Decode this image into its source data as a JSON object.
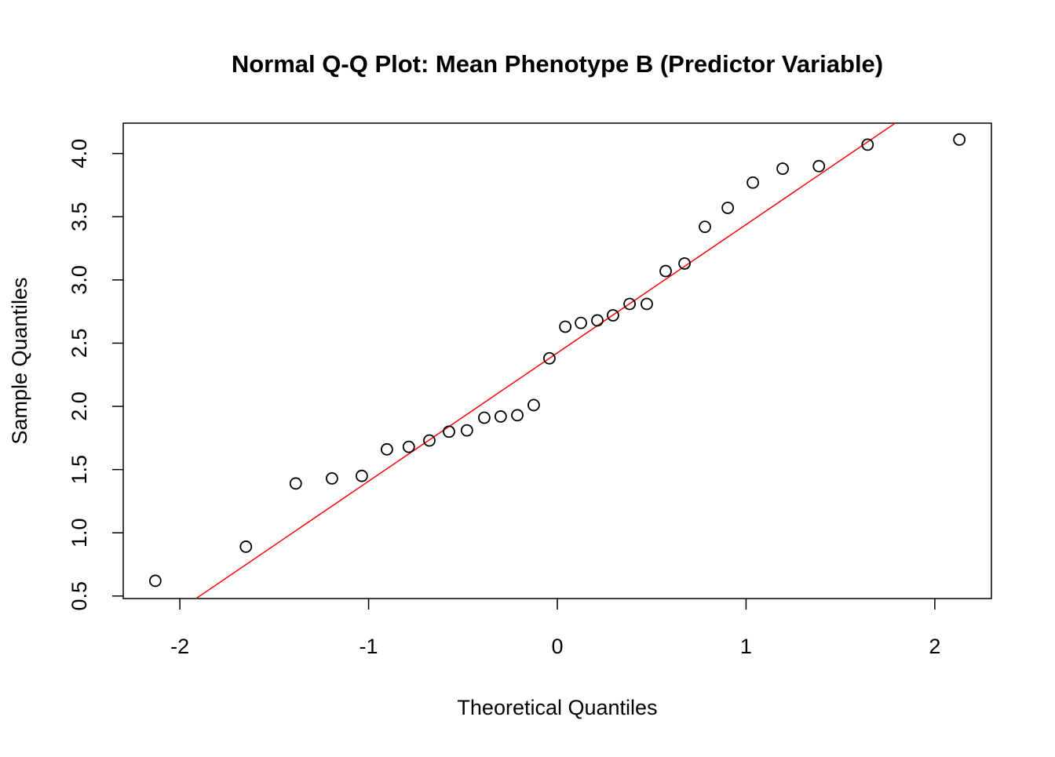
{
  "chart_data": {
    "type": "scatter",
    "title": "Normal Q-Q Plot: Mean Phenotype B (Predictor Variable)",
    "x_label": "Theoretical Quantiles",
    "y_label": "Sample Quantiles",
    "x": [
      -2.13,
      -1.65,
      -1.386,
      -1.194,
      -1.036,
      -0.903,
      -0.787,
      -0.678,
      -0.574,
      -0.479,
      -0.387,
      -0.3,
      -0.212,
      -0.125,
      -0.042,
      0.042,
      0.125,
      0.212,
      0.295,
      0.383,
      0.474,
      0.574,
      0.674,
      0.782,
      0.903,
      1.036,
      1.194,
      1.386,
      1.644,
      2.13
    ],
    "values": [
      0.62,
      0.89,
      1.39,
      1.43,
      1.45,
      1.66,
      1.68,
      1.73,
      1.8,
      1.81,
      1.91,
      1.92,
      1.93,
      2.01,
      2.38,
      2.63,
      2.66,
      2.68,
      2.72,
      2.81,
      2.81,
      3.07,
      3.13,
      3.42,
      3.57,
      3.77,
      3.88,
      3.9,
      4.07,
      4.11
    ],
    "color": "#000000",
    "reference_line": {
      "intercept": 2.423,
      "slope": 1.015,
      "color": "#ff0000"
    },
    "xlim": [
      -2.3,
      2.3
    ],
    "ylim": [
      0.48,
      4.24
    ],
    "xticks": [
      -2,
      -1,
      0,
      1,
      2
    ],
    "yticks": [
      0.5,
      {
        "value": 1,
        "label": "1.0"
      },
      1.5,
      {
        "value": 2,
        "label": "2.0"
      },
      2.5,
      {
        "value": 3,
        "label": "3.0"
      },
      3.5,
      {
        "value": 4,
        "label": "4.0"
      }
    ]
  }
}
